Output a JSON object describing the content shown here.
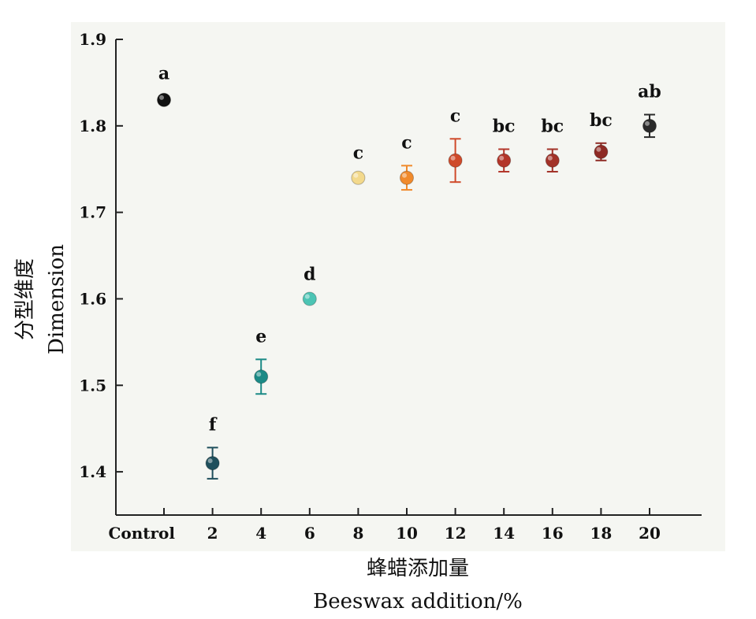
{
  "chart_data": {
    "type": "scatter",
    "title": "",
    "xlabel_cn": "蜂蜡添加量",
    "xlabel": "Beeswax addition/%",
    "ylabel_cn": "分型维度",
    "ylabel": "Dimension",
    "categories": [
      "Control",
      "2",
      "4",
      "6",
      "8",
      "10",
      "12",
      "14",
      "16",
      "18",
      "20"
    ],
    "values": [
      1.83,
      1.41,
      1.51,
      1.6,
      1.74,
      1.74,
      1.76,
      1.76,
      1.76,
      1.77,
      1.8
    ],
    "errors": [
      0.004,
      0.018,
      0.02,
      0.002,
      0.002,
      0.014,
      0.025,
      0.013,
      0.013,
      0.01,
      0.013
    ],
    "significance": [
      "a",
      "f",
      "e",
      "d",
      "c",
      "c",
      "c",
      "bc",
      "bc",
      "bc",
      "ab"
    ],
    "colors": [
      "#111111",
      "#1f4f5c",
      "#1b8a86",
      "#4cc4b4",
      "#f3d98c",
      "#f08a2c",
      "#cf4a2a",
      "#b3362a",
      "#a23228",
      "#8e2a24",
      "#2a2a2a"
    ],
    "ylim": [
      1.35,
      1.9
    ],
    "yticks": [
      1.4,
      1.5,
      1.6,
      1.7,
      1.8,
      1.9
    ],
    "grid": false,
    "legend": "none"
  }
}
